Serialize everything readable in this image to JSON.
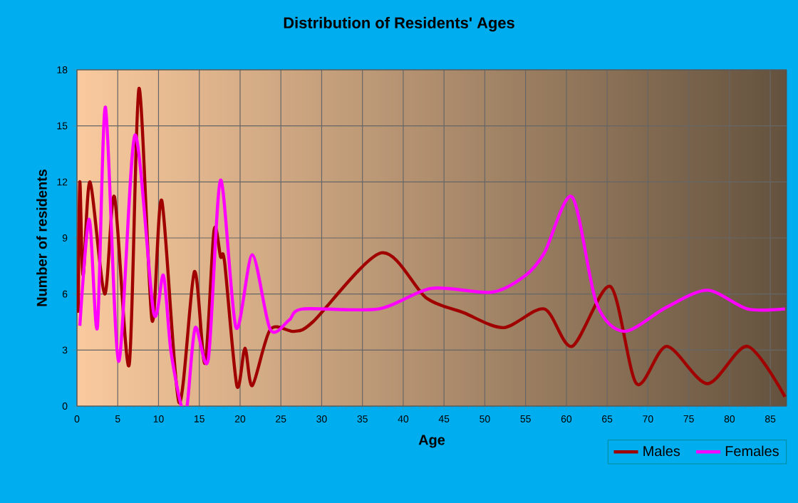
{
  "chart_data": {
    "type": "line",
    "title": "Distribution of Residents' Ages",
    "xlabel": "Age",
    "ylabel": "Number of residents",
    "xlim": [
      0,
      87
    ],
    "ylim": [
      0,
      18
    ],
    "xticks": [
      0,
      5,
      10,
      15,
      20,
      25,
      30,
      35,
      40,
      45,
      50,
      55,
      60,
      65,
      70,
      75,
      80,
      85
    ],
    "yticks": [
      0,
      3,
      6,
      9,
      12,
      15,
      18
    ],
    "grid": true,
    "legend": "bottom right",
    "marker": "none",
    "line_style": "solid",
    "series": [
      {
        "name": "Males",
        "color": "#a00000",
        "x": [
          0.17,
          0.35,
          0.75,
          1.6,
          3.4,
          4.6,
          6.4,
          7.6,
          9.2,
          10.4,
          12.5,
          14.4,
          15.7,
          16.8,
          17.6,
          18.1,
          19.6,
          20.6,
          21.5,
          23.7,
          26.6,
          28.9,
          37.3,
          42.8,
          47.4,
          52.3,
          57.3,
          60.7,
          65.4,
          68.6,
          72.3,
          77.3,
          82.2,
          86.8
        ],
        "values": [
          5,
          12,
          7,
          12,
          6,
          11.2,
          2.2,
          17,
          4.6,
          11,
          0.2,
          7.2,
          2.3,
          9.4,
          8,
          7.7,
          1.1,
          3.1,
          1.1,
          4.1,
          4.0,
          4.5,
          8.2,
          5.8,
          5.0,
          4.2,
          5.2,
          3.2,
          6.4,
          1.2,
          3.2,
          1.2,
          3.2,
          0.5
        ]
      },
      {
        "name": "Females",
        "color": "#ff00ff",
        "x": [
          0.35,
          1.5,
          2.5,
          3.5,
          5.1,
          7.1,
          9.4,
          10.6,
          11.5,
          12.8,
          13.5,
          14.5,
          16.1,
          17.6,
          19.5,
          21.5,
          23.7,
          26.0,
          27.7,
          37.0,
          43.4,
          50.9,
          55.0,
          57.3,
          60.7,
          63.7,
          67.1,
          72.3,
          77.3,
          82.2,
          86.8
        ],
        "values": [
          4.3,
          10,
          4.2,
          16,
          2.4,
          14.5,
          5,
          7,
          3,
          0,
          0,
          4.2,
          2.5,
          12.1,
          4.2,
          8.1,
          4.1,
          4.6,
          5.2,
          5.2,
          6.3,
          6.1,
          7.0,
          8.2,
          11.2,
          5.5,
          4.0,
          5.3,
          6.2,
          5.2,
          5.2
        ]
      }
    ]
  }
}
